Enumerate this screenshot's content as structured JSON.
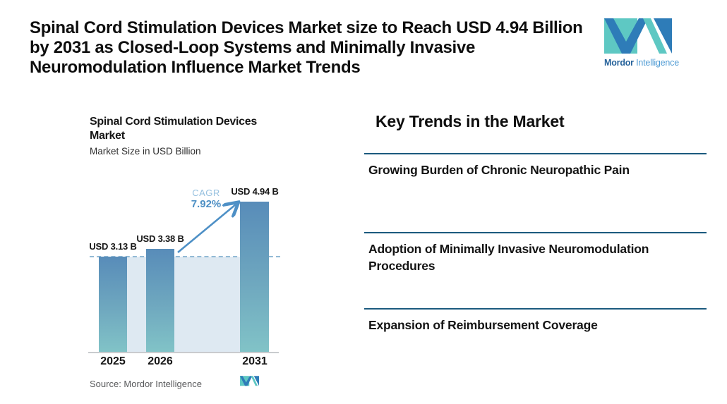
{
  "header": {
    "title": "Spinal Cord Stimulation Devices Market size to Reach USD 4.94 Billion by 2031 as Closed-Loop Systems and Minimally Invasive Neuromodulation Influence Market Trends"
  },
  "brand": {
    "mordor": "Mordor",
    "intelligence": " Intelligence",
    "logo_icon": "mordor-intelligence-m-logo",
    "colors": {
      "teal": "#5EC8C3",
      "blue": "#2E7CB8",
      "text_bold": "#27639B",
      "text_light": "#4E9BD4"
    }
  },
  "chart_data": {
    "type": "bar",
    "title": "Spinal Cord Stimulation Devices Market",
    "subtitle": "Market Size in USD Billion",
    "categories": [
      "2025",
      "2026",
      "2031"
    ],
    "values": [
      3.13,
      3.38,
      4.94
    ],
    "value_labels": [
      "USD 3.13 B",
      "USD 3.38 B",
      "USD 4.94 B"
    ],
    "ylabel": "Market Size in USD Billion",
    "ylim": [
      0,
      6
    ],
    "grid": "off",
    "legend": "none",
    "cagr_label": "CAGR",
    "cagr_value": "7.92%",
    "annotations": [
      "dashed reference line at 2025 value",
      "arrow from 2026 bar top to 2031 bar top"
    ],
    "source": "Source: Mordor Intelligence",
    "colors": {
      "bar_gradient_top": "#588CB9",
      "bar_gradient_bottom": "#81C3C7",
      "band": "#DEE9F2",
      "dashed_line": "#92BAD5",
      "arrow": "#4E90C6",
      "cagr_label": "#96C0DF",
      "cagr_value": "#4D8FC4"
    }
  },
  "trends": {
    "heading": "Key Trends in the Market",
    "rule_color": "#1B5A7E",
    "items": [
      "Growing Burden of Chronic Neuropathic Pain",
      "Adoption of Minimally Invasive Neuromodulation Procedures",
      "Expansion of Reimbursement Coverage"
    ]
  }
}
